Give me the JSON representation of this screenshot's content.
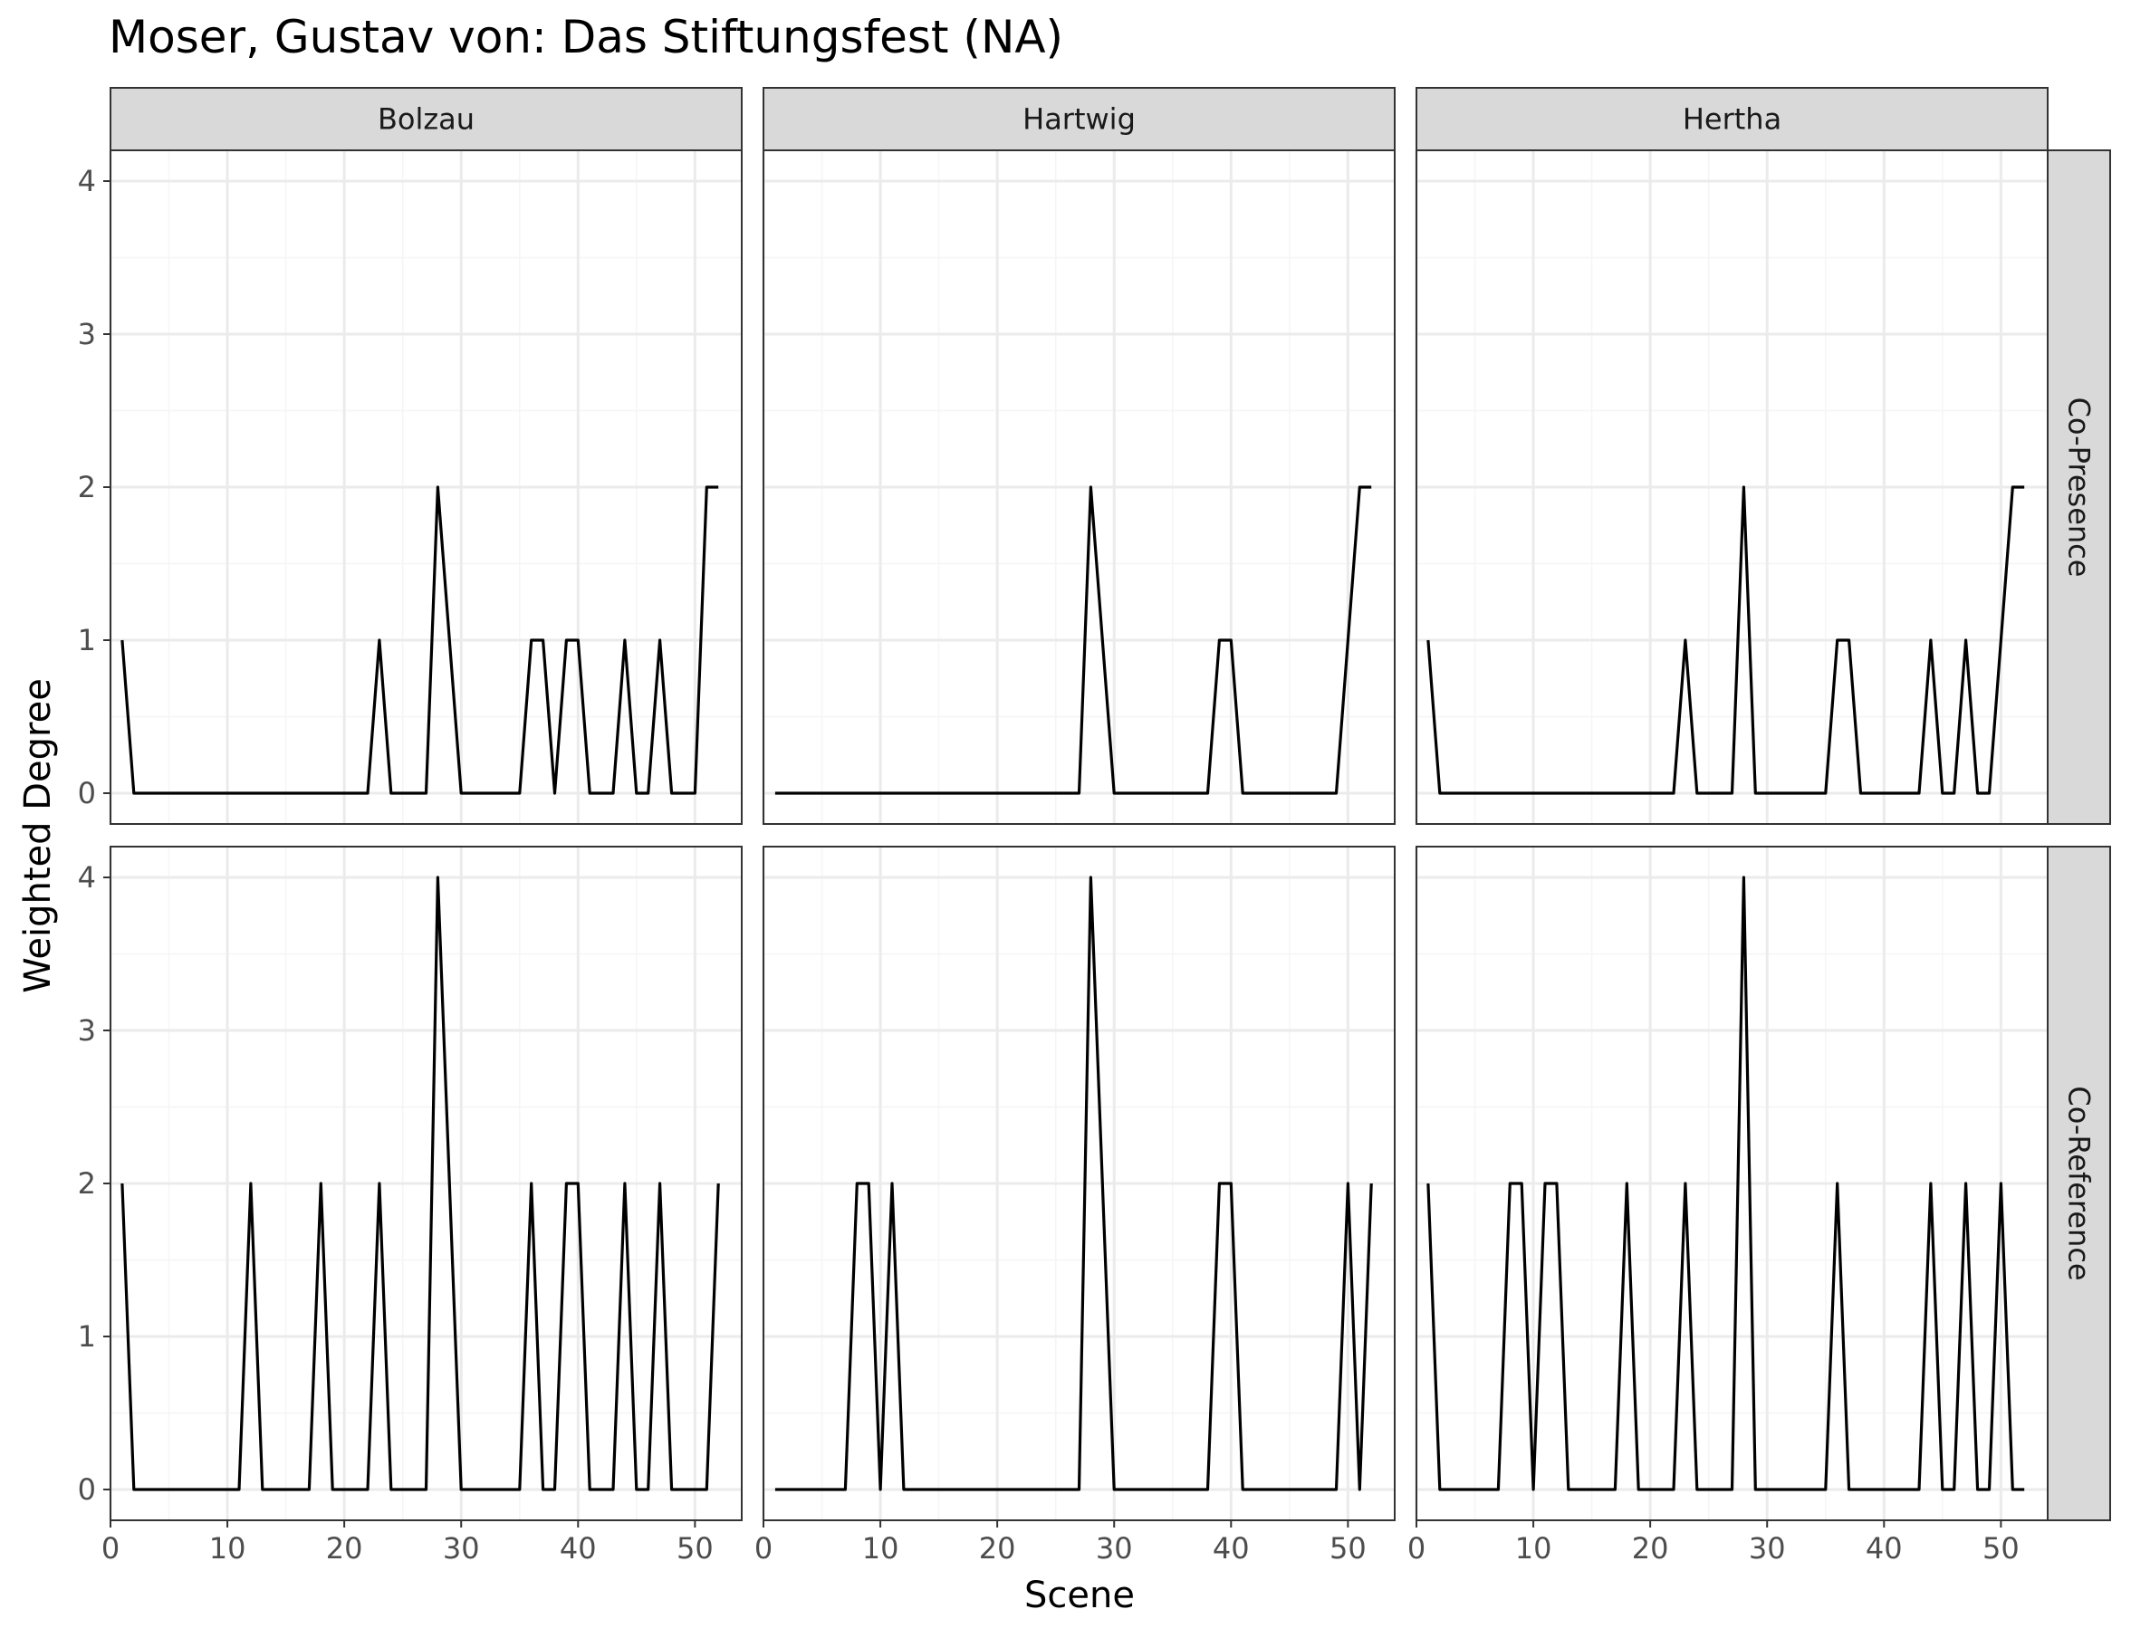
{
  "title": "Moser, Gustav von: Das Stiftungsfest (NA)",
  "chart_data": {
    "type": "line",
    "title": "Moser, Gustav von: Das Stiftungsfest (NA)",
    "xlabel": "Scene",
    "ylabel": "Weighted Degree",
    "xlim": [
      0,
      54
    ],
    "ylim": [
      0,
      4
    ],
    "x_ticks": [
      0,
      10,
      20,
      30,
      40,
      50
    ],
    "y_ticks": [
      0,
      1,
      2,
      3,
      4
    ],
    "grid": true,
    "columns": [
      "Bolzau",
      "Hartwig",
      "Hertha"
    ],
    "rows": [
      "Co-Presence",
      "Co-Reference"
    ],
    "panels": [
      {
        "row": "Co-Presence",
        "column": "Bolzau",
        "values": [
          1,
          0,
          0,
          0,
          0,
          0,
          0,
          0,
          0,
          0,
          0,
          0,
          0,
          0,
          0,
          0,
          0,
          0,
          0,
          0,
          0,
          0,
          1,
          0,
          0,
          0,
          0,
          2,
          1,
          0,
          0,
          0,
          0,
          0,
          0,
          1,
          1,
          0,
          1,
          1,
          0,
          0,
          0,
          1,
          0,
          0,
          1,
          0,
          0,
          0,
          2,
          2
        ]
      },
      {
        "row": "Co-Presence",
        "column": "Hartwig",
        "values": [
          0,
          0,
          0,
          0,
          0,
          0,
          0,
          0,
          0,
          0,
          0,
          0,
          0,
          0,
          0,
          0,
          0,
          0,
          0,
          0,
          0,
          0,
          0,
          0,
          0,
          0,
          0,
          2,
          1,
          0,
          0,
          0,
          0,
          0,
          0,
          0,
          0,
          0,
          1,
          1,
          0,
          0,
          0,
          0,
          0,
          0,
          0,
          0,
          0,
          1,
          2,
          2
        ]
      },
      {
        "row": "Co-Presence",
        "column": "Hertha",
        "values": [
          1,
          0,
          0,
          0,
          0,
          0,
          0,
          0,
          0,
          0,
          0,
          0,
          0,
          0,
          0,
          0,
          0,
          0,
          0,
          0,
          0,
          0,
          1,
          0,
          0,
          0,
          0,
          2,
          0,
          0,
          0,
          0,
          0,
          0,
          0,
          1,
          1,
          0,
          0,
          0,
          0,
          0,
          0,
          1,
          0,
          0,
          1,
          0,
          0,
          1,
          2,
          2
        ]
      },
      {
        "row": "Co-Reference",
        "column": "Bolzau",
        "values": [
          2,
          0,
          0,
          0,
          0,
          0,
          0,
          0,
          0,
          0,
          0,
          2,
          0,
          0,
          0,
          0,
          0,
          2,
          0,
          0,
          0,
          0,
          2,
          0,
          0,
          0,
          0,
          4,
          2,
          0,
          0,
          0,
          0,
          0,
          0,
          2,
          0,
          0,
          2,
          2,
          0,
          0,
          0,
          2,
          0,
          0,
          2,
          0,
          0,
          0,
          0,
          2
        ]
      },
      {
        "row": "Co-Reference",
        "column": "Hartwig",
        "values": [
          0,
          0,
          0,
          0,
          0,
          0,
          0,
          2,
          2,
          0,
          2,
          0,
          0,
          0,
          0,
          0,
          0,
          0,
          0,
          0,
          0,
          0,
          0,
          0,
          0,
          0,
          0,
          4,
          2,
          0,
          0,
          0,
          0,
          0,
          0,
          0,
          0,
          0,
          2,
          2,
          0,
          0,
          0,
          0,
          0,
          0,
          0,
          0,
          0,
          2,
          0,
          2
        ]
      },
      {
        "row": "Co-Reference",
        "column": "Hertha",
        "values": [
          2,
          0,
          0,
          0,
          0,
          0,
          0,
          2,
          2,
          0,
          2,
          2,
          0,
          0,
          0,
          0,
          0,
          2,
          0,
          0,
          0,
          0,
          2,
          0,
          0,
          0,
          0,
          4,
          0,
          0,
          0,
          0,
          0,
          0,
          0,
          2,
          0,
          0,
          0,
          0,
          0,
          0,
          0,
          2,
          0,
          0,
          2,
          0,
          0,
          2,
          0,
          0
        ]
      }
    ]
  },
  "colors": {
    "line": "#000000",
    "grid_major": "#ebebeb",
    "grid_minor": "#f5f5f5",
    "strip_fill": "#d9d9d9",
    "border": "#333333"
  }
}
